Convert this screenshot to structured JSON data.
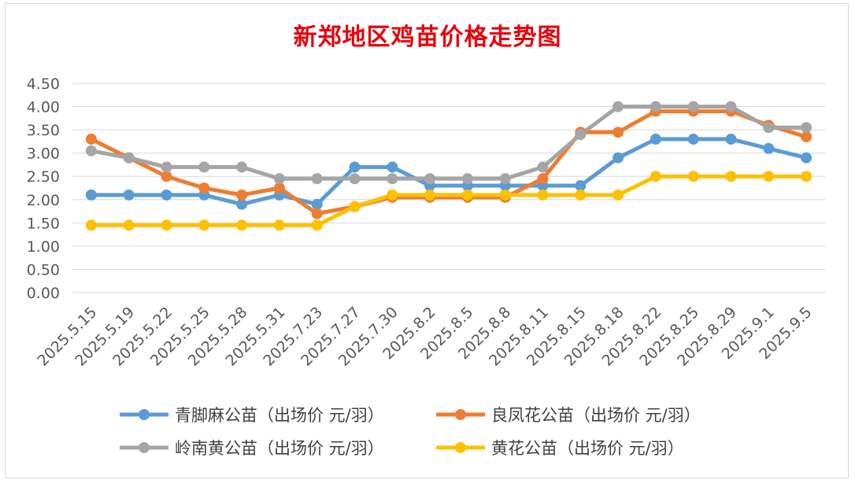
{
  "chart_data": {
    "type": "line",
    "title": "新郑地区鸡苗价格走势图",
    "categories": [
      "2025.5.15",
      "2025.5.19",
      "2025.5.22",
      "2025.5.25",
      "2025.5.28",
      "2025.5.31",
      "2025.7.23",
      "2025.7.27",
      "2025.7.30",
      "2025.8.2",
      "2025.8.5",
      "2025.8.8",
      "2025.8.11",
      "2025.8.15",
      "2025.8.18",
      "2025.8.22",
      "2025.8.25",
      "2025.8.29",
      "2025.9.1",
      "2025.9.5"
    ],
    "ylim": [
      0,
      4.5
    ],
    "yticks": [
      "0.00",
      "0.50",
      "1.00",
      "1.50",
      "2.00",
      "2.50",
      "3.00",
      "3.50",
      "4.00",
      "4.50"
    ],
    "grid": true,
    "legend_position": "bottom",
    "series": [
      {
        "name": "青脚麻公苗（出场价 元/羽）",
        "color": "#5b9bd5",
        "values": [
          2.1,
          2.1,
          2.1,
          2.1,
          1.9,
          2.1,
          1.9,
          2.7,
          2.7,
          2.3,
          2.3,
          2.3,
          2.3,
          2.3,
          2.9,
          3.3,
          3.3,
          3.3,
          3.1,
          2.9
        ]
      },
      {
        "name": "良凤花公苗（出场价 元/羽）",
        "color": "#ed7d31",
        "values": [
          3.3,
          2.9,
          2.5,
          2.25,
          2.1,
          2.25,
          1.7,
          1.85,
          2.05,
          2.05,
          2.05,
          2.05,
          2.45,
          3.45,
          3.45,
          3.9,
          3.9,
          3.9,
          3.6,
          3.35
        ]
      },
      {
        "name": "岭南黄公苗（出场价 元/羽）",
        "color": "#a5a5a5",
        "values": [
          3.05,
          2.9,
          2.7,
          2.7,
          2.7,
          2.45,
          2.45,
          2.45,
          2.45,
          2.45,
          2.45,
          2.45,
          2.7,
          3.4,
          4.0,
          4.0,
          4.0,
          4.0,
          3.55,
          3.55
        ]
      },
      {
        "name": "黄花公苗（出场价 元/羽）",
        "color": "#ffc000",
        "values": [
          1.45,
          1.45,
          1.45,
          1.45,
          1.45,
          1.45,
          1.45,
          1.85,
          2.1,
          2.1,
          2.1,
          2.1,
          2.1,
          2.1,
          2.1,
          2.5,
          2.5,
          2.5,
          2.5,
          2.5
        ]
      }
    ]
  }
}
